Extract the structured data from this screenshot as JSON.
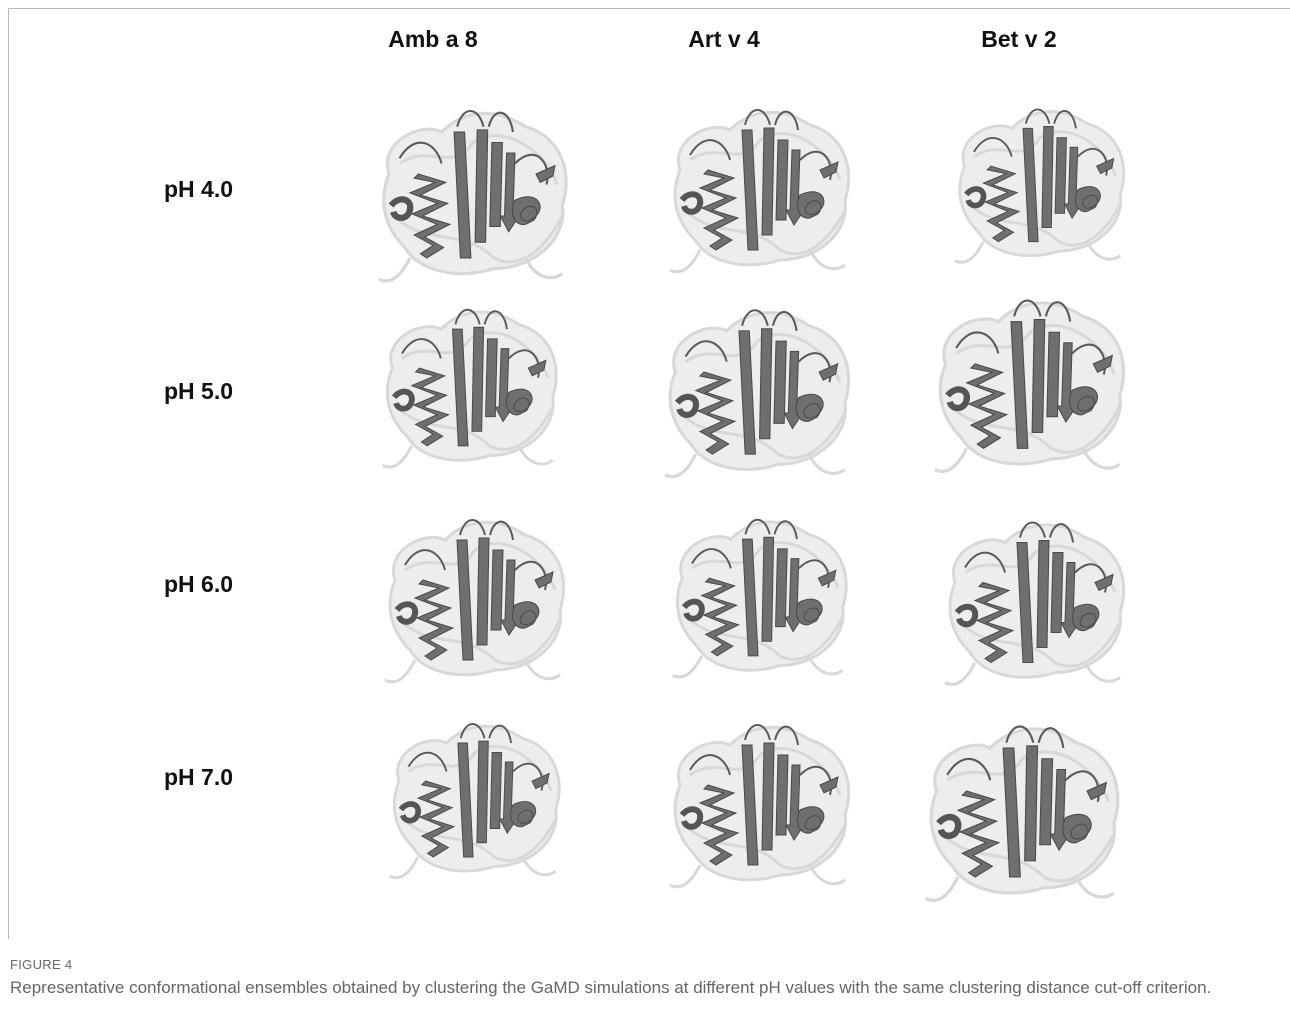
{
  "figure": {
    "columns": [
      "Amb a 8",
      "Art v 4",
      "Bet v 2"
    ],
    "rows": [
      "pH 4.0",
      "pH 5.0",
      "pH 6.0",
      "pH 7.0"
    ],
    "label": "FIGURE 4",
    "caption": "Representative conformational ensembles obtained by clustering the GaMD simulations at different pH values with the same clustering distance cut-off criterion."
  }
}
